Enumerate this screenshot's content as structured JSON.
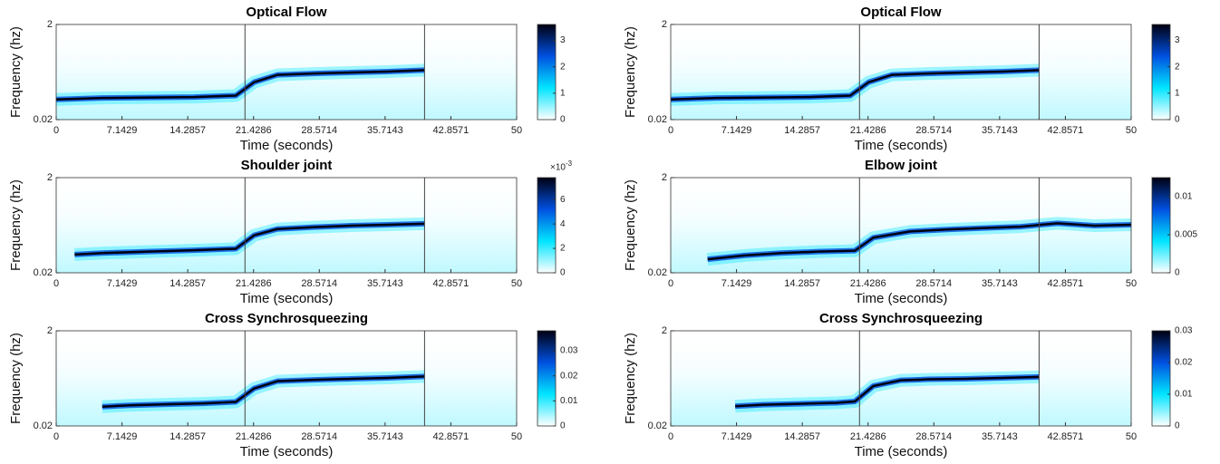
{
  "chart_data": [
    {
      "type": "spectrogram",
      "title": "Optical Flow",
      "xlabel": "Time (seconds)",
      "ylabel": "Frequency (hz)",
      "xlim": [
        0,
        50
      ],
      "xticks": [
        0,
        7.1429,
        14.2857,
        21.4286,
        28.5714,
        35.7143,
        42.8571,
        50
      ],
      "ylim": [
        0.02,
        2
      ],
      "yticks": [
        0.02,
        2
      ],
      "vlines": [
        20.5,
        40
      ],
      "clim": [
        0,
        3.6
      ],
      "cticks": [
        0,
        1,
        2,
        3
      ],
      "colormap": [
        "#ffffff",
        "#00e5ff",
        "#0050e0",
        "#000010"
      ],
      "ridge": {
        "x": [
          0,
          5,
          10,
          15,
          19.5,
          21.5,
          24,
          28,
          32,
          36,
          40
        ],
        "values": [
          0.44,
          0.47,
          0.48,
          0.49,
          0.52,
          0.8,
          0.95,
          0.98,
          1.0,
          1.02,
          1.05
        ]
      }
    },
    {
      "type": "spectrogram",
      "title": "Optical Flow",
      "xlabel": "Time (seconds)",
      "ylabel": "Frequency (hz)",
      "xlim": [
        0,
        50
      ],
      "xticks": [
        0,
        7.1429,
        14.2857,
        21.4286,
        28.5714,
        35.7143,
        42.8571,
        50
      ],
      "ylim": [
        0.02,
        2
      ],
      "yticks": [
        0.02,
        2
      ],
      "vlines": [
        20.5,
        40
      ],
      "clim": [
        0,
        3.6
      ],
      "cticks": [
        0,
        1,
        2,
        3
      ],
      "colormap": [
        "#ffffff",
        "#00e5ff",
        "#0050e0",
        "#000010"
      ],
      "ridge": {
        "x": [
          0,
          5,
          10,
          15,
          19.5,
          21.5,
          24,
          28,
          32,
          36,
          40
        ],
        "values": [
          0.44,
          0.47,
          0.48,
          0.49,
          0.52,
          0.8,
          0.95,
          0.98,
          1.0,
          1.02,
          1.05
        ]
      }
    },
    {
      "type": "spectrogram",
      "title": "Shoulder joint",
      "xlabel": "Time (seconds)",
      "ylabel": "Frequency (hz)",
      "xlim": [
        0,
        50
      ],
      "xticks": [
        0,
        7.1429,
        14.2857,
        21.4286,
        28.5714,
        35.7143,
        42.8571,
        50
      ],
      "ylim": [
        0.02,
        2
      ],
      "yticks": [
        0.02,
        2
      ],
      "vlines": [
        20.5,
        40
      ],
      "clim": [
        0,
        0.0078
      ],
      "cticks": [
        0,
        {
          "value": 0.002,
          "label": "2"
        },
        {
          "value": 0.004,
          "label": "4"
        },
        {
          "value": 0.006,
          "label": "6"
        }
      ],
      "colorbar_multiplier": "×10",
      "colorbar_exponent": "-3",
      "colormap": [
        "#ffffff",
        "#00e5ff",
        "#0050e0",
        "#000010"
      ],
      "ridge": {
        "x": [
          2,
          5,
          10,
          15,
          19.5,
          21.5,
          24,
          28,
          32,
          36,
          40
        ],
        "values": [
          0.4,
          0.43,
          0.46,
          0.49,
          0.52,
          0.8,
          0.93,
          0.97,
          1.0,
          1.02,
          1.04
        ]
      }
    },
    {
      "type": "spectrogram",
      "title": "Elbow joint",
      "xlabel": "Time (seconds)",
      "ylabel": "Frequency (hz)",
      "xlim": [
        0,
        50
      ],
      "xticks": [
        0,
        7.1429,
        14.2857,
        21.4286,
        28.5714,
        35.7143,
        42.8571,
        50
      ],
      "ylim": [
        0.02,
        2
      ],
      "yticks": [
        0.02,
        2
      ],
      "vlines": [
        20.5,
        40
      ],
      "clim": [
        0,
        0.0125
      ],
      "cticks": [
        0,
        0.005,
        0.01
      ],
      "colormap": [
        "#ffffff",
        "#00e5ff",
        "#0050e0",
        "#000010"
      ],
      "ridge": {
        "x": [
          4,
          8,
          12,
          16,
          20,
          22,
          26,
          30,
          34,
          38,
          42,
          46,
          50
        ],
        "values": [
          0.3,
          0.38,
          0.43,
          0.46,
          0.48,
          0.75,
          0.88,
          0.92,
          0.95,
          0.98,
          1.05,
          1.0,
          1.02
        ]
      }
    },
    {
      "type": "spectrogram",
      "title": "Cross Synchrosqueezing",
      "xlabel": "Time (seconds)",
      "ylabel": "Frequency (hz)",
      "xlim": [
        0,
        50
      ],
      "xticks": [
        0,
        7.1429,
        14.2857,
        21.4286,
        28.5714,
        35.7143,
        42.8571,
        50
      ],
      "ylim": [
        0.02,
        2
      ],
      "yticks": [
        0.02,
        2
      ],
      "vlines": [
        20.5,
        40
      ],
      "clim": [
        0,
        0.038
      ],
      "cticks": [
        0,
        0.01,
        0.02,
        0.03
      ],
      "colormap": [
        "#ffffff",
        "#00e5ff",
        "#0050e0",
        "#000010"
      ],
      "ridge": {
        "x": [
          5,
          8,
          12,
          16,
          19.5,
          21.5,
          24,
          28,
          32,
          36,
          40
        ],
        "values": [
          0.42,
          0.45,
          0.47,
          0.49,
          0.52,
          0.8,
          0.95,
          0.98,
          1.0,
          1.02,
          1.05
        ]
      }
    },
    {
      "type": "spectrogram",
      "title": "Cross Synchrosqueezing",
      "xlabel": "Time (seconds)",
      "ylabel": "Frequency (hz)",
      "xlim": [
        0,
        50
      ],
      "xticks": [
        0,
        7.1429,
        14.2857,
        21.4286,
        28.5714,
        35.7143,
        42.8571,
        50
      ],
      "ylim": [
        0.02,
        2
      ],
      "yticks": [
        0.02,
        2
      ],
      "vlines": [
        20.5,
        40
      ],
      "clim": [
        0,
        0.03
      ],
      "cticks": [
        0,
        0.01,
        0.02,
        0.03
      ],
      "colormap": [
        "#ffffff",
        "#00e5ff",
        "#0050e0",
        "#000010"
      ],
      "ridge": {
        "x": [
          7,
          10,
          14,
          18,
          20,
          22,
          25,
          28,
          32,
          36,
          40
        ],
        "values": [
          0.43,
          0.46,
          0.48,
          0.5,
          0.53,
          0.85,
          0.97,
          0.99,
          1.0,
          1.02,
          1.04
        ]
      }
    }
  ]
}
